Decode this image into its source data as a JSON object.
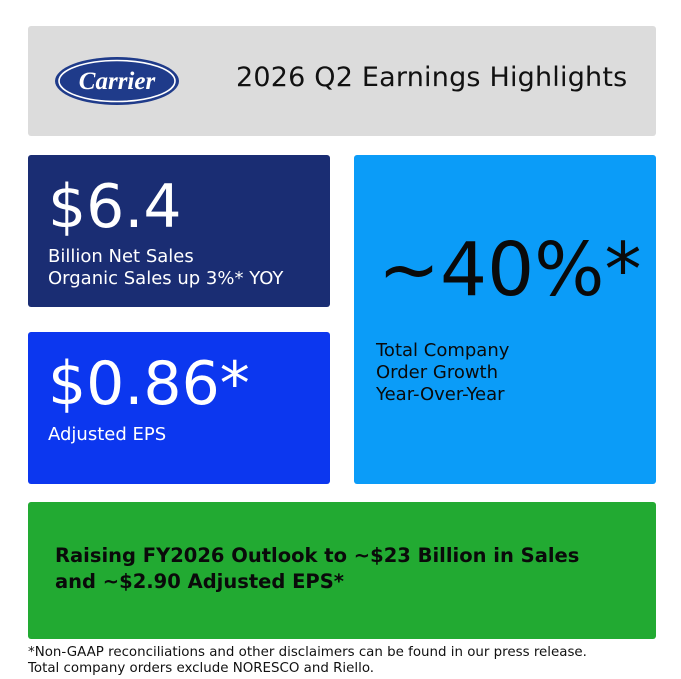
{
  "header": {
    "logo_text": "Carrier",
    "title": "2026 Q2 Earnings Highlights"
  },
  "sales_card": {
    "value": "$6.4",
    "line1": "Billion Net Sales",
    "line2": "Organic Sales up 3%* YOY"
  },
  "eps_card": {
    "value": "$0.86*",
    "line1": "Adjusted EPS"
  },
  "orders_card": {
    "value": "~40%*",
    "line1": "Total Company",
    "line2": "Order Growth",
    "line3": "Year-Over-Year"
  },
  "outlook_card": {
    "line1": "Raising FY2026 Outlook to ~$23 Billion in Sales",
    "line2": "and ~$2.90 Adjusted EPS*"
  },
  "footnote": {
    "line1": "*Non-GAAP reconciliations and other disclaimers can be found in our press release.",
    "line2": "Total company orders exclude NORESCO and Riello."
  },
  "colors": {
    "header_bg": "#dcdcdc",
    "sales_bg": "#1a2d73",
    "eps_bg": "#0c37ef",
    "orders_bg": "#0b9cf8",
    "outlook_bg": "#22aa32",
    "logo_blue": "#1f3b8a"
  }
}
